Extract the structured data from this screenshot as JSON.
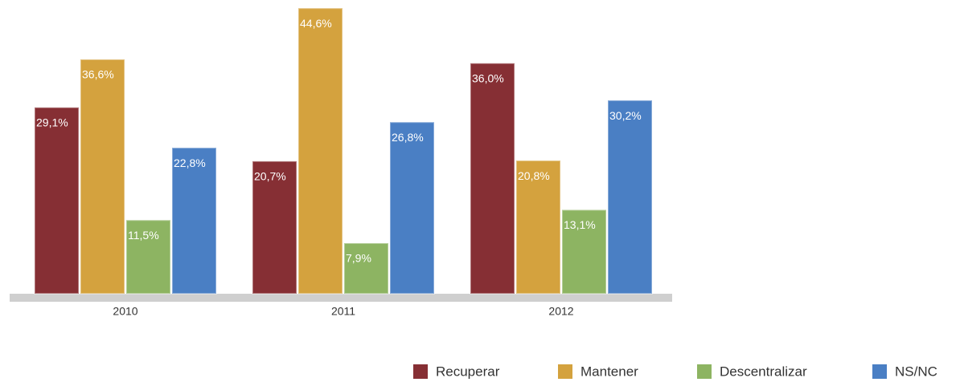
{
  "chart_data": {
    "type": "bar",
    "categories": [
      "2010",
      "2011",
      "2012"
    ],
    "ylim": [
      0,
      45
    ],
    "series": [
      {
        "name": "Recuperar",
        "color": "#862f34",
        "values": [
          29.1,
          20.7,
          36.0
        ],
        "value_labels": [
          "29,1%",
          "20,7%",
          "36,0%"
        ]
      },
      {
        "name": "Mantener",
        "color": "#d4a23e",
        "values": [
          36.6,
          44.6,
          20.8
        ],
        "value_labels": [
          "36,6%",
          "44,6%",
          "20,8%"
        ]
      },
      {
        "name": "Descentralizar",
        "color": "#8db462",
        "values": [
          11.5,
          7.9,
          13.1
        ],
        "value_labels": [
          "11,5%",
          "7,9%",
          "13,1%"
        ]
      },
      {
        "name": "NS/NC",
        "color": "#4a7fc4",
        "values": [
          22.8,
          26.8,
          30.2
        ],
        "value_labels": [
          "22,8%",
          "26,8%",
          "30,2%"
        ]
      }
    ]
  }
}
